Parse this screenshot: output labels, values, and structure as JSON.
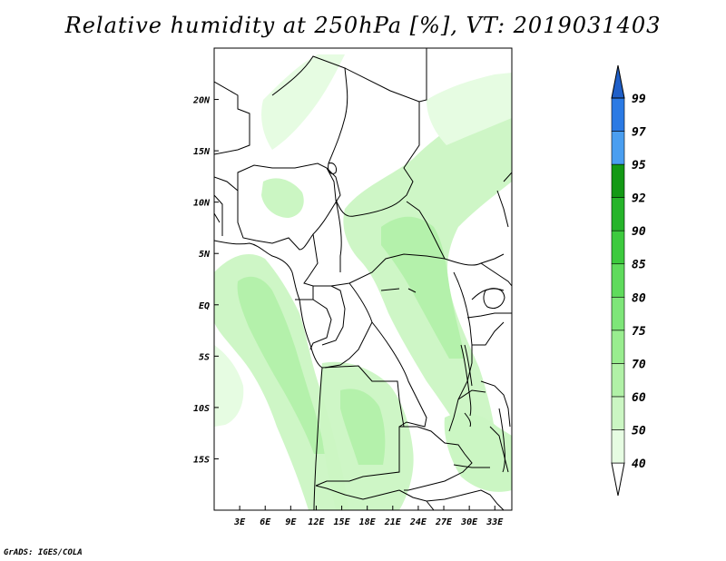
{
  "title": "Relative humidity at 250hPa [%], VT: 2019031403",
  "credit": "GrADS: IGES/COLA",
  "map": {
    "lon_range": [
      0,
      35
    ],
    "lat_range": [
      -20,
      25
    ],
    "lon_ticks": [
      {
        "value": 3,
        "label": "3E"
      },
      {
        "value": 6,
        "label": "6E"
      },
      {
        "value": 9,
        "label": "9E"
      },
      {
        "value": 12,
        "label": "12E"
      },
      {
        "value": 15,
        "label": "15E"
      },
      {
        "value": 18,
        "label": "18E"
      },
      {
        "value": 21,
        "label": "21E"
      },
      {
        "value": 24,
        "label": "24E"
      },
      {
        "value": 27,
        "label": "27E"
      },
      {
        "value": 30,
        "label": "30E"
      },
      {
        "value": 33,
        "label": "33E"
      }
    ],
    "lat_ticks": [
      {
        "value": 20,
        "label": "20N"
      },
      {
        "value": 15,
        "label": "15N"
      },
      {
        "value": 10,
        "label": "10N"
      },
      {
        "value": 5,
        "label": "5N"
      },
      {
        "value": 0,
        "label": "EQ"
      },
      {
        "value": -5,
        "label": "5S"
      },
      {
        "value": -10,
        "label": "10S"
      },
      {
        "value": -15,
        "label": "15S"
      }
    ]
  },
  "colorbar": {
    "levels": [
      "40",
      "50",
      "60",
      "70",
      "75",
      "80",
      "85",
      "90",
      "92",
      "95",
      "97",
      "99"
    ],
    "colors": [
      "#ffffff",
      "#e6fce2",
      "#cbf6c3",
      "#b1f1a7",
      "#99ed8f",
      "#7ee679",
      "#5fdb5c",
      "#3dca3e",
      "#26b42a",
      "#139915",
      "#4a9ef0",
      "#2b7ae4",
      "#1f5fc8"
    ]
  }
}
